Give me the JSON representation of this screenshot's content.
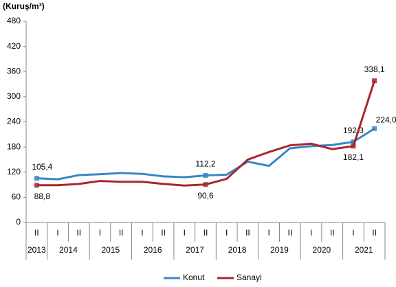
{
  "chart_data": {
    "type": "line",
    "y_label": "(Kuruş/m³)",
    "categories": [
      "II",
      "I",
      "II",
      "I",
      "II",
      "I",
      "II",
      "I",
      "II",
      "I",
      "II",
      "I",
      "II",
      "I",
      "II",
      "I",
      "II"
    ],
    "years": [
      "2013",
      "2014",
      "2015",
      "2016",
      "2017",
      "2018",
      "2019",
      "2020",
      "2021"
    ],
    "series": [
      {
        "name": "Konut",
        "color": "#3a85c6",
        "values": [
          105.4,
          103,
          113,
          115,
          118,
          116,
          110,
          108,
          112.2,
          114,
          145,
          135,
          177,
          182,
          185,
          192.3,
          224.0
        ],
        "value_labels": [
          "105,4",
          null,
          null,
          null,
          null,
          null,
          null,
          null,
          "112,2",
          null,
          null,
          null,
          null,
          null,
          null,
          "192,3",
          "224,0"
        ]
      },
      {
        "name": "Sanayi",
        "color": "#a9262b",
        "values": [
          88.8,
          88.8,
          92,
          99,
          97,
          97,
          92,
          88,
          90.6,
          104,
          150,
          168,
          184,
          188,
          175,
          182.1,
          338.1
        ],
        "value_labels": [
          "88,8",
          null,
          null,
          null,
          null,
          null,
          null,
          null,
          "90,6",
          null,
          null,
          null,
          null,
          null,
          null,
          "182,1",
          "338,1"
        ]
      }
    ],
    "ylim": [
      0,
      480
    ],
    "yticks": [
      0,
      60,
      120,
      180,
      240,
      300,
      360,
      420,
      480
    ],
    "grid": false
  }
}
